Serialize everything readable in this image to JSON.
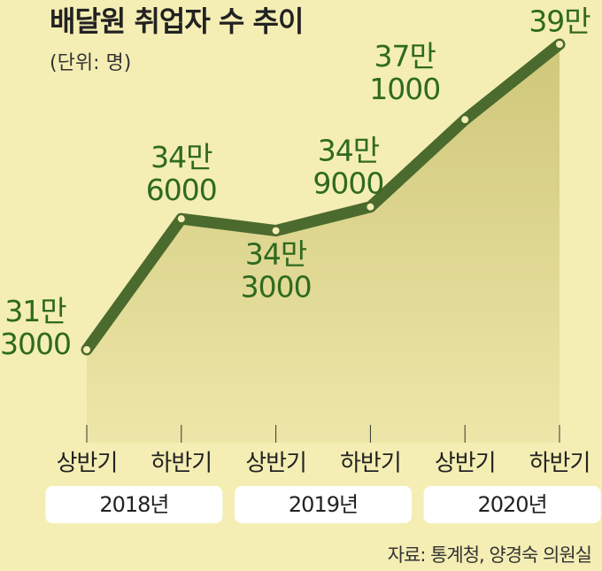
{
  "chart_data": {
    "type": "line",
    "title": "배달원 취업자 수 추이",
    "subtitle": "(단위: 명)",
    "categories": [
      "상반기",
      "하반기",
      "상반기",
      "하반기",
      "상반기",
      "하반기"
    ],
    "groups": [
      "2018년",
      "2019년",
      "2020년"
    ],
    "values": [
      313000,
      346000,
      343000,
      349000,
      371000,
      390000
    ],
    "value_labels": [
      "31만 3000",
      "34만 6000",
      "34만 3000",
      "34만 9000",
      "37만 1000",
      "39만"
    ],
    "color": "#4b6a2e",
    "source": "자료: 통계청, 양경숙 의원실"
  }
}
